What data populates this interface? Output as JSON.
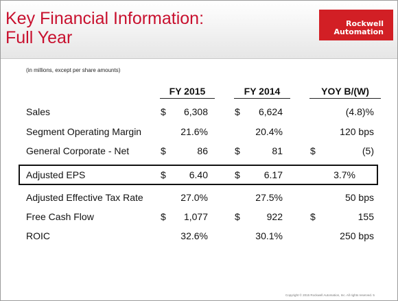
{
  "header": {
    "title": "Key Financial Information:\nFull Year",
    "logo_line1": "Rockwell",
    "logo_line2": "Automation"
  },
  "note": "(in millions, except per share amounts)",
  "columns": [
    "FY 2015",
    "FY 2014",
    "YOY B/(W)"
  ],
  "rows": [
    {
      "label": "Sales",
      "d1": "$",
      "v1": "6,308",
      "d2": "$",
      "v2": "6,624",
      "d3": "",
      "v3": "(4.8)%"
    },
    {
      "label": "Segment Operating Margin",
      "d1": "",
      "v1": "21.6%",
      "d2": "",
      "v2": "20.4%",
      "d3": "",
      "v3": "120 bps"
    },
    {
      "label": "General Corporate - Net",
      "d1": "$",
      "v1": "86",
      "d2": "$",
      "v2": "81",
      "d3": "$",
      "v3": "(5)"
    },
    {
      "label": "Adjusted EPS",
      "d1": "$",
      "v1": "6.40",
      "d2": "$",
      "v2": "6.17",
      "d3": "",
      "v3": "3.7%"
    },
    {
      "label": "Adjusted Effective Tax Rate",
      "d1": "",
      "v1": "27.0%",
      "d2": "",
      "v2": "27.5%",
      "d3": "",
      "v3": "50 bps"
    },
    {
      "label": "Free Cash Flow",
      "d1": "$",
      "v1": "1,077",
      "d2": "$",
      "v2": "922",
      "d3": "$",
      "v3": "155"
    },
    {
      "label": "ROIC",
      "d1": "",
      "v1": "32.6%",
      "d2": "",
      "v2": "30.1%",
      "d3": "",
      "v3": "250 bps"
    }
  ],
  "footer": "Copyright © 2015 Rockwell Automation, Inc.  All rights reserved.     5",
  "colors": {
    "brand_red": "#c8102e",
    "logo_red": "#d21f25"
  }
}
